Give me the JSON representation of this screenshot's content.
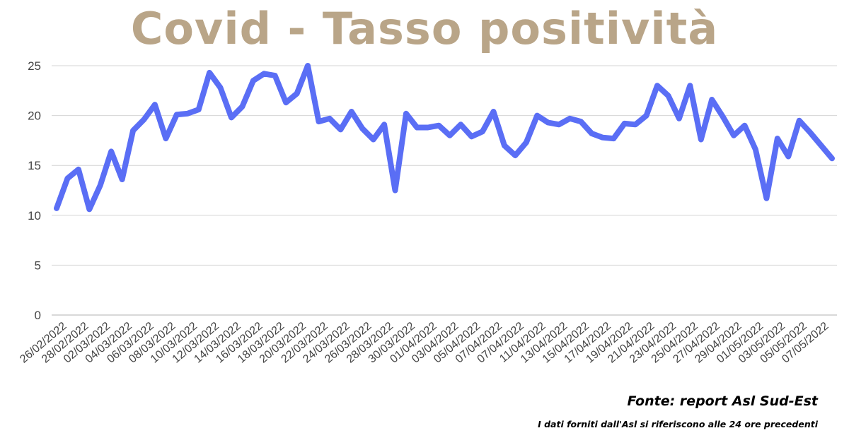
{
  "title": "Covid - Tasso positività",
  "source": "Fonte: report Asl Sud-Est",
  "note": "I dati forniti dall'Asl si riferiscono alle 24 ore precedenti",
  "colors": {
    "title": "#b9a588",
    "line": "#5a6ef5",
    "grid": "#d4d4d4",
    "axis_text": "#444444"
  },
  "chart_data": {
    "type": "line",
    "title": "Covid - Tasso positività",
    "xlabel": "",
    "ylabel": "",
    "ylim": [
      0,
      25
    ],
    "yticks": [
      0,
      5,
      10,
      15,
      20,
      25
    ],
    "grid": true,
    "legend": "none",
    "x_tick_labels": [
      "26/02/2022",
      "28/02/2022",
      "02/03/2022",
      "04/03/2022",
      "06/03/2022",
      "08/03/2022",
      "10/03/2022",
      "12/03/2022",
      "14/03/2022",
      "16/03/2022",
      "18/03/2022",
      "20/03/2022",
      "22/03/2022",
      "24/03/2022",
      "26/03/2022",
      "28/03/2022",
      "30/03/2022",
      "01/04/2022",
      "03/04/2022",
      "05/04/2022",
      "07/04/2022",
      "07/04/2022",
      "11/04/2022",
      "13/04/2022",
      "15/04/2022",
      "17/04/2022",
      "19/04/2022",
      "21/04/2022",
      "23/04/2022",
      "25/04/2022",
      "27/04/2022",
      "29/04/2022",
      "01/05/2022",
      "03/05/2022",
      "05/05/2022",
      "07/05/2022"
    ],
    "series": [
      {
        "values": [
          10.7,
          13.7,
          14.6,
          10.6,
          13.0,
          16.4,
          13.6,
          18.5,
          19.6,
          21.1,
          17.7,
          20.1,
          20.2,
          20.6,
          24.3,
          22.8,
          19.8,
          20.9,
          23.5,
          24.2,
          24.0,
          21.3,
          22.2,
          25.0,
          19.4,
          19.7,
          18.6,
          20.4,
          18.7,
          17.6,
          19.1,
          12.5,
          20.2,
          18.8,
          18.8,
          19.0,
          18.0,
          19.1,
          17.9,
          18.4,
          20.4,
          17.0,
          16.0,
          17.3,
          20.0,
          19.3,
          19.1,
          19.7,
          19.4,
          18.2,
          17.8,
          17.7,
          19.2,
          19.1,
          20.0,
          23.0,
          22.0,
          19.7,
          23.0,
          17.6,
          21.6,
          19.9,
          18.0,
          19.0,
          16.6,
          11.7,
          17.7,
          15.9,
          19.5,
          18.3,
          17.0,
          15.7
        ]
      }
    ]
  }
}
